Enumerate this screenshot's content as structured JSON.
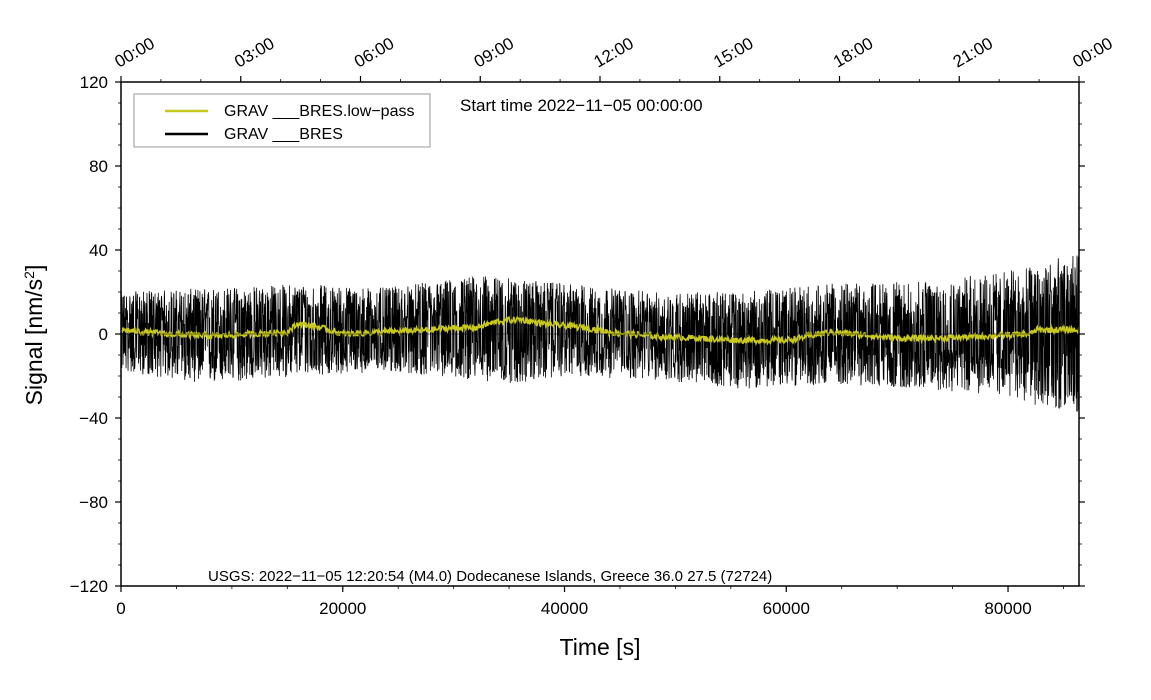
{
  "chart_data": {
    "type": "line",
    "title": "",
    "xlabel": "Time [s]",
    "ylabel_main": "Signal [nm/s",
    "ylabel_sup": "2",
    "ylabel_close": "]",
    "xlim": [
      0,
      86400
    ],
    "ylim": [
      -120,
      120
    ],
    "x_ticks": [
      0,
      20000,
      40000,
      60000,
      80000
    ],
    "x_tick_labels": [
      "0",
      "20000",
      "40000",
      "60000",
      "80000"
    ],
    "y_ticks": [
      -120,
      -80,
      -40,
      0,
      40,
      80,
      120
    ],
    "y_tick_labels": [
      "−120",
      "−80",
      "−40",
      "0",
      "40",
      "80",
      "120"
    ],
    "top_axis_positions": [
      0,
      10800,
      21600,
      32400,
      43200,
      54000,
      64800,
      75600,
      86400
    ],
    "top_axis_labels": [
      "00:00",
      "03:00",
      "06:00",
      "09:00",
      "12:00",
      "15:00",
      "18:00",
      "21:00",
      "00:00"
    ],
    "start_time_text": "Start time 2022−11−05 00:00:00",
    "event_text": "USGS: 2022−11−05 12:20:54 (M4.0) Dodecanese Islands, Greece 36.0 27.5 (72724)",
    "legend_position": "top-left",
    "grid": false,
    "series": [
      {
        "name": "GRAV ___BRES.low−pass",
        "color": "#c8c81e",
        "x": [
          0,
          4000,
          8000,
          12000,
          15000,
          16000,
          18000,
          20000,
          24000,
          28000,
          30000,
          32000,
          34000,
          36000,
          38000,
          40000,
          42000,
          44000,
          46000,
          48000,
          52000,
          56000,
          60000,
          62000,
          64000,
          66000,
          70000,
          74000,
          78000,
          82000,
          82600,
          84000,
          86400
        ],
        "values": [
          2,
          0,
          -1,
          0,
          1,
          5,
          3,
          0,
          1,
          2,
          3,
          3,
          6,
          7,
          5,
          4,
          3,
          1,
          0,
          -1,
          -2,
          -3,
          -3,
          -1,
          1,
          0,
          -2,
          -2,
          -1,
          0,
          2,
          2,
          2
        ]
      },
      {
        "name": "GRAV ___BRES",
        "color": "#000000",
        "x": [
          0,
          8000,
          16000,
          24000,
          32000,
          36000,
          40000,
          48000,
          56000,
          64000,
          72000,
          80000,
          84000,
          86400
        ],
        "envelope_upper": [
          20,
          22,
          24,
          22,
          28,
          26,
          24,
          20,
          20,
          24,
          25,
          30,
          36,
          38
        ],
        "envelope_lower": [
          -18,
          -24,
          -20,
          -18,
          -22,
          -24,
          -20,
          -22,
          -26,
          -24,
          -26,
          -30,
          -36,
          -38
        ]
      }
    ]
  }
}
